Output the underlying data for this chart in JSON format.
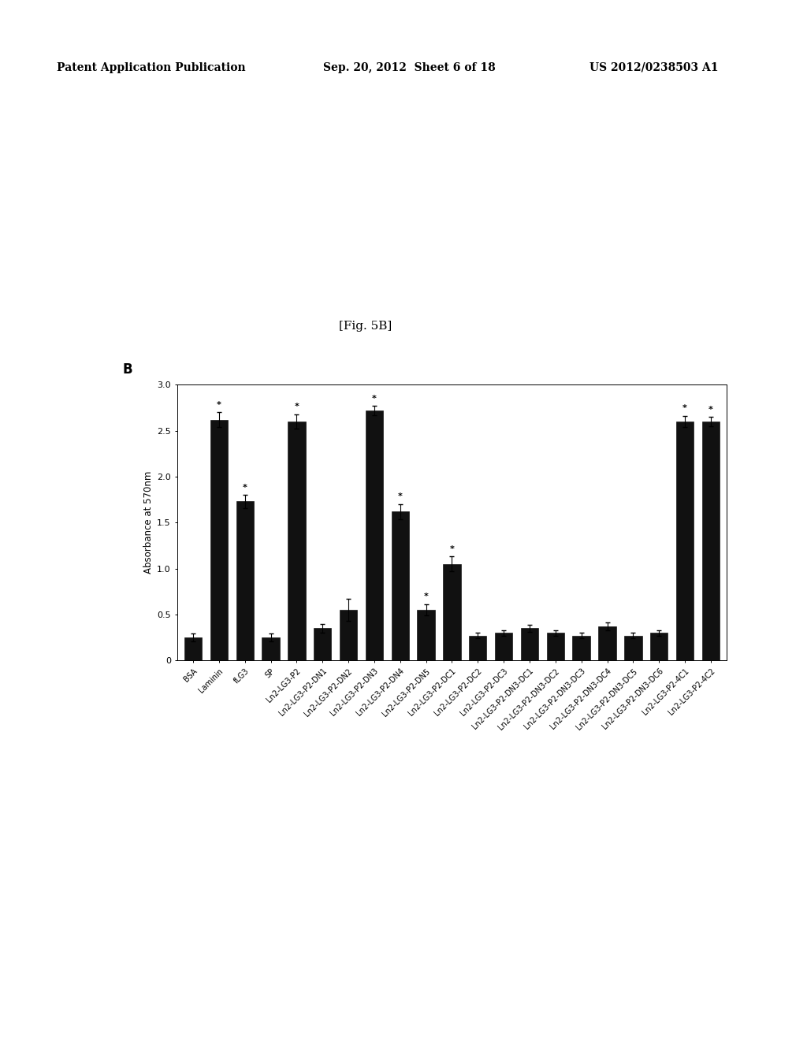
{
  "categories": [
    "BSA",
    "Laminin",
    "fLG3",
    "SP",
    "Ln2-LG3-P2",
    "Ln2-LG3-P2-DN1",
    "Ln2-LG3-P2-DN2",
    "Ln2-LG3-P2-DN3",
    "Ln2-LG3-P2-DN4",
    "Ln2-LG3-P2-DN5",
    "Ln2-LG3-P2-DC1",
    "Ln2-LG3-P2-DC2",
    "Ln2-LG3-P2-DC3",
    "Ln2-LG3-P2-DN3-DC1",
    "Ln2-LG3-P2-DN3-DC2",
    "Ln2-LG3-P2-DN3-DC3",
    "Ln2-LG3-P2-DN3-DC4",
    "Ln2-LG3-P2-DN3-DC5",
    "Ln2-LG3-P2-DN3-DC6",
    "Ln2-LG3-P2-4C1",
    "Ln2-LG3-P2-4C2"
  ],
  "values": [
    0.25,
    2.62,
    1.73,
    0.25,
    2.6,
    0.35,
    0.55,
    2.72,
    1.62,
    0.55,
    1.05,
    0.27,
    0.3,
    0.35,
    0.3,
    0.27,
    0.37,
    0.27,
    0.3,
    2.6,
    2.6
  ],
  "errors": [
    0.04,
    0.08,
    0.07,
    0.04,
    0.08,
    0.05,
    0.12,
    0.05,
    0.08,
    0.06,
    0.08,
    0.03,
    0.03,
    0.04,
    0.03,
    0.03,
    0.04,
    0.03,
    0.03,
    0.06,
    0.05
  ],
  "significant": [
    false,
    true,
    true,
    false,
    true,
    false,
    false,
    true,
    true,
    true,
    true,
    false,
    false,
    false,
    false,
    false,
    false,
    false,
    false,
    true,
    true
  ],
  "bar_color": "#111111",
  "ylabel": "Absorbance at 570nm",
  "ylim": [
    0,
    3.0
  ],
  "yticks": [
    0,
    0.5,
    1.0,
    1.5,
    2.0,
    2.5,
    3.0
  ],
  "panel_label": "B",
  "fig_title": "[Fig. 5B]",
  "header_left": "Patent Application Publication",
  "header_mid": "Sep. 20, 2012  Sheet 6 of 18",
  "header_right": "US 2012/0238503 A1",
  "figsize": [
    10.24,
    13.2
  ],
  "dpi": 100
}
